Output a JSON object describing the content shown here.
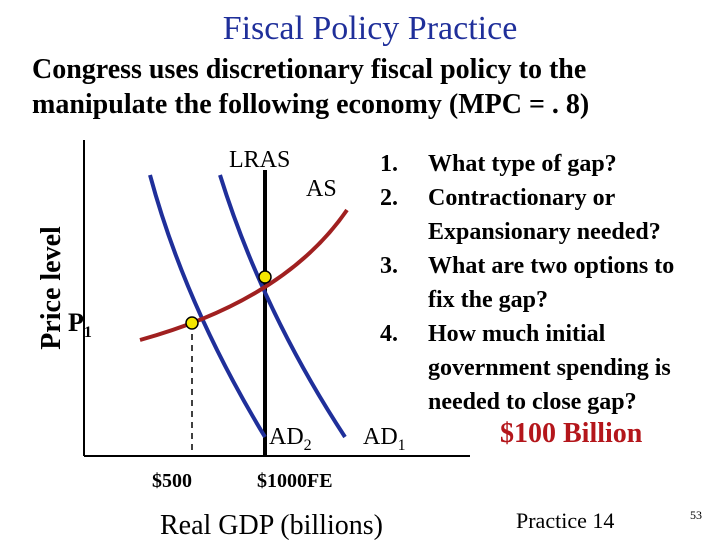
{
  "slide": {
    "title": "Fiscal Policy Practice",
    "subtitle": "Congress uses discretionary fiscal policy to the manipulate the following economy (MPC = . 8)",
    "answer": "$100 Billion",
    "footer_label": "Practice 14",
    "page_number": "53",
    "accent_color": "#b4161b",
    "title_color": "#1f2f9a"
  },
  "questions": [
    {
      "number": "1.",
      "text": "What type of gap?"
    },
    {
      "number": "2.",
      "text": "Contractionary or Expansionary needed?"
    },
    {
      "number": "3.",
      "text": "What are two options to fix the gap?"
    },
    {
      "number": "4.",
      "text": "How much initial government spending is needed to close gap?"
    }
  ],
  "diagram": {
    "y_axis_label": "Price level",
    "x_axis_label": "Real GDP (billions)",
    "price_label": "P",
    "price_label_sub": "1",
    "x_ticks": [
      "$500",
      "$1000FE"
    ],
    "curves": {
      "lras": "LRAS",
      "as": "AS",
      "ad1": "AD",
      "ad1_sub": "1",
      "ad2": "AD",
      "ad2_sub": "2"
    },
    "colors": {
      "ad": "#1f2f9a",
      "as": "#a02020",
      "lras": "#000000",
      "equilibrium": "#f5e600"
    }
  }
}
